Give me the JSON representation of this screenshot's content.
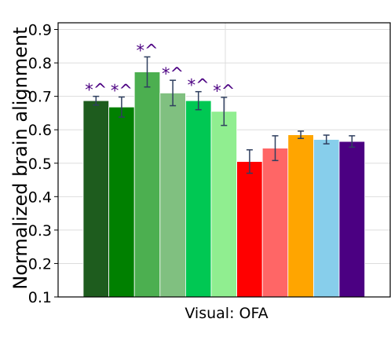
{
  "chart_data": {
    "type": "bar",
    "title": "",
    "xlabel": "Visual: OFA",
    "ylabel": "Normalized brain alignment",
    "ylim": [
      0.1,
      0.92
    ],
    "yticks": [
      "0.1",
      "0.2",
      "0.3",
      "0.4",
      "0.5",
      "0.6",
      "0.7",
      "0.8",
      "0.9"
    ],
    "grid": true,
    "bars": [
      {
        "value": 0.687,
        "err": 0.013,
        "color": "#1e5c1e",
        "annotation": "*^"
      },
      {
        "value": 0.668,
        "err": 0.03,
        "color": "#008000",
        "annotation": "*^"
      },
      {
        "value": 0.773,
        "err": 0.045,
        "color": "#4caf50",
        "annotation": "*^"
      },
      {
        "value": 0.71,
        "err": 0.038,
        "color": "#80c080",
        "annotation": "*^"
      },
      {
        "value": 0.687,
        "err": 0.027,
        "color": "#00c853",
        "annotation": "*^"
      },
      {
        "value": 0.655,
        "err": 0.042,
        "color": "#90ee90",
        "annotation": "*^"
      },
      {
        "value": 0.505,
        "err": 0.035,
        "color": "#ff0000",
        "annotation": ""
      },
      {
        "value": 0.545,
        "err": 0.037,
        "color": "#ff6666",
        "annotation": ""
      },
      {
        "value": 0.585,
        "err": 0.011,
        "color": "#ffa500",
        "annotation": ""
      },
      {
        "value": 0.571,
        "err": 0.013,
        "color": "#87ceeb",
        "annotation": ""
      },
      {
        "value": 0.565,
        "err": 0.017,
        "color": "#4b0082",
        "annotation": ""
      }
    ]
  }
}
